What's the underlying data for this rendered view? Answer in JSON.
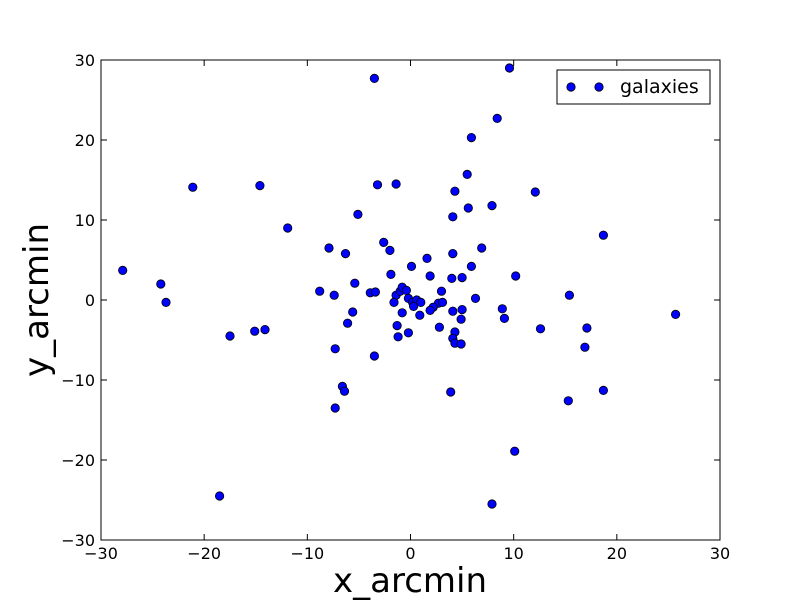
{
  "chart_data": {
    "type": "scatter",
    "title": "",
    "xlabel": "x_arcmin",
    "ylabel": "y_arcmin",
    "xlim": [
      -30,
      30
    ],
    "ylim": [
      -30,
      30
    ],
    "xticks": [
      -30,
      -20,
      -10,
      0,
      10,
      20,
      30
    ],
    "yticks": [
      -30,
      -20,
      -10,
      0,
      10,
      20,
      30
    ],
    "xtick_labels": [
      "−30",
      "−20",
      "−10",
      "0",
      "10",
      "20",
      "30"
    ],
    "ytick_labels": [
      "−30",
      "−20",
      "−10",
      "0",
      "10",
      "20",
      "30"
    ],
    "grid": false,
    "legend_position": "top-right",
    "series": [
      {
        "name": "galaxies",
        "color": "#0000ff",
        "marker": "circle",
        "points": [
          [
            9.6,
            29.0
          ],
          [
            -3.5,
            27.7
          ],
          [
            8.4,
            22.7
          ],
          [
            5.9,
            20.3
          ],
          [
            -21.1,
            14.1
          ],
          [
            -14.6,
            14.3
          ],
          [
            -3.2,
            14.4
          ],
          [
            -1.4,
            14.5
          ],
          [
            4.3,
            13.6
          ],
          [
            5.5,
            15.7
          ],
          [
            12.1,
            13.5
          ],
          [
            7.9,
            11.8
          ],
          [
            5.6,
            11.5
          ],
          [
            4.1,
            10.4
          ],
          [
            -5.1,
            10.7
          ],
          [
            -11.9,
            9.0
          ],
          [
            18.7,
            8.1
          ],
          [
            -2.6,
            7.2
          ],
          [
            -7.9,
            6.5
          ],
          [
            -6.3,
            5.8
          ],
          [
            -2.0,
            6.2
          ],
          [
            6.9,
            6.5
          ],
          [
            4.1,
            5.8
          ],
          [
            1.6,
            5.2
          ],
          [
            0.1,
            4.2
          ],
          [
            5.9,
            4.2
          ],
          [
            -27.9,
            3.7
          ],
          [
            -1.9,
            3.2
          ],
          [
            1.9,
            3.0
          ],
          [
            4.0,
            2.7
          ],
          [
            5.0,
            2.8
          ],
          [
            10.2,
            3.0
          ],
          [
            -24.2,
            2.0
          ],
          [
            -5.4,
            2.1
          ],
          [
            -8.8,
            1.1
          ],
          [
            -7.4,
            0.6
          ],
          [
            -3.9,
            0.9
          ],
          [
            -3.4,
            1.0
          ],
          [
            -1.4,
            0.6
          ],
          [
            -1.0,
            1.1
          ],
          [
            -0.8,
            1.6
          ],
          [
            -0.4,
            1.2
          ],
          [
            3.0,
            1.1
          ],
          [
            15.4,
            0.6
          ],
          [
            -23.7,
            -0.3
          ],
          [
            -1.6,
            -0.3
          ],
          [
            -0.2,
            0.2
          ],
          [
            0.2,
            -0.3
          ],
          [
            0.6,
            0.0
          ],
          [
            1.0,
            -0.3
          ],
          [
            0.3,
            -0.8
          ],
          [
            2.7,
            -0.4
          ],
          [
            3.1,
            -0.3
          ],
          [
            6.3,
            0.2
          ],
          [
            2.2,
            -0.9
          ],
          [
            1.9,
            -1.3
          ],
          [
            0.9,
            -1.9
          ],
          [
            -0.8,
            -1.6
          ],
          [
            -5.6,
            -1.5
          ],
          [
            -6.1,
            -2.9
          ],
          [
            4.1,
            -1.4
          ],
          [
            5.0,
            -1.2
          ],
          [
            4.9,
            -2.4
          ],
          [
            8.9,
            -1.1
          ],
          [
            9.1,
            -2.3
          ],
          [
            -1.3,
            -3.2
          ],
          [
            -0.2,
            -4.1
          ],
          [
            -1.2,
            -4.6
          ],
          [
            -15.1,
            -3.9
          ],
          [
            -14.1,
            -3.7
          ],
          [
            -17.5,
            -4.5
          ],
          [
            2.8,
            -3.4
          ],
          [
            4.3,
            -4.0
          ],
          [
            4.1,
            -4.8
          ],
          [
            4.3,
            -5.4
          ],
          [
            4.9,
            -5.5
          ],
          [
            12.6,
            -3.6
          ],
          [
            17.1,
            -3.5
          ],
          [
            25.7,
            -1.8
          ],
          [
            16.9,
            -5.9
          ],
          [
            -7.3,
            -6.1
          ],
          [
            -3.5,
            -7.0
          ],
          [
            -6.6,
            -10.8
          ],
          [
            -6.4,
            -11.4
          ],
          [
            3.9,
            -11.5
          ],
          [
            18.7,
            -11.3
          ],
          [
            -7.3,
            -13.5
          ],
          [
            15.3,
            -12.6
          ],
          [
            10.1,
            -18.9
          ],
          [
            -18.5,
            -24.5
          ],
          [
            7.9,
            -25.5
          ]
        ]
      }
    ]
  }
}
